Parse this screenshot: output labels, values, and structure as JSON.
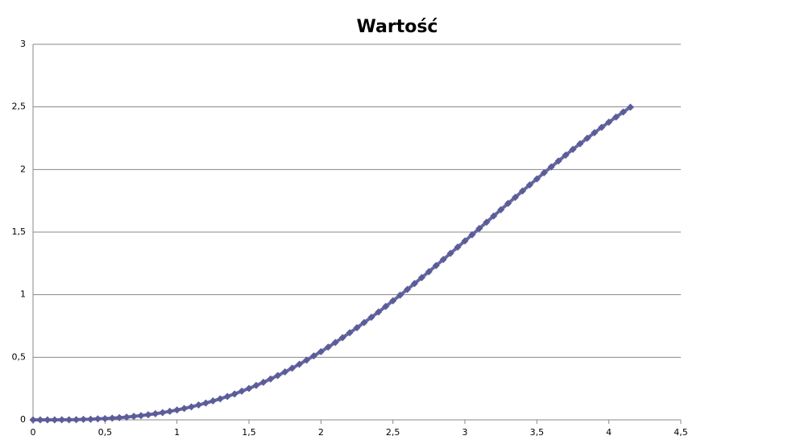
{
  "chart_data": {
    "type": "line",
    "title": "Wartość",
    "marker": "diamond",
    "grid": true,
    "xlim": [
      0,
      4.5
    ],
    "xticks": [
      0,
      {
        "value": 0.5,
        "label": "0,5"
      },
      1,
      {
        "value": 1.5,
        "label": "1,5"
      },
      2,
      {
        "value": 2.5,
        "label": "2,5"
      },
      3,
      {
        "value": 3.5,
        "label": "3,5"
      },
      4,
      {
        "value": 4.5,
        "label": "4,5"
      }
    ],
    "ylim": [
      0,
      3
    ],
    "yticks": [
      0,
      {
        "value": 0.5,
        "label": "0,5"
      },
      1,
      {
        "value": 1.5,
        "label": "1,5"
      },
      2,
      {
        "value": 2.5,
        "label": "2,5"
      },
      3
    ],
    "x": [
      0,
      0.05,
      0.1,
      0.15,
      0.2,
      0.25,
      0.3,
      0.35,
      0.4,
      0.45,
      0.5,
      0.55,
      0.6,
      0.65,
      0.7,
      0.75,
      0.8,
      0.85,
      0.9,
      0.95,
      1.0,
      1.05,
      1.1,
      1.15,
      1.2,
      1.25,
      1.3,
      1.35,
      1.4,
      1.45,
      1.5,
      1.55,
      1.6,
      1.65,
      1.7,
      1.75,
      1.8,
      1.85,
      1.9,
      1.95,
      2.0,
      2.05,
      2.1,
      2.15,
      2.2,
      2.25,
      2.3,
      2.35,
      2.4,
      2.45,
      2.5,
      2.55,
      2.6,
      2.65,
      2.7,
      2.75,
      2.8,
      2.85,
      2.9,
      2.95,
      3.0,
      3.05,
      3.1,
      3.15,
      3.2,
      3.25,
      3.3,
      3.35,
      3.4,
      3.45,
      3.5,
      3.55,
      3.6,
      3.65,
      3.7,
      3.75,
      3.8,
      3.85,
      3.9,
      3.95,
      4.0,
      4.05,
      4.1,
      4.15
    ],
    "series": [
      {
        "color": "#6666a3",
        "marker_color": "#5c5c99",
        "values": [
          0,
          0,
          0,
          0,
          0.001,
          0.001,
          0.002,
          0.004,
          0.005,
          0.008,
          0.01,
          0.014,
          0.018,
          0.022,
          0.028,
          0.034,
          0.041,
          0.049,
          0.058,
          0.068,
          0.079,
          0.091,
          0.104,
          0.119,
          0.134,
          0.151,
          0.168,
          0.187,
          0.207,
          0.229,
          0.251,
          0.275,
          0.3,
          0.327,
          0.354,
          0.383,
          0.413,
          0.444,
          0.477,
          0.511,
          0.545,
          0.581,
          0.618,
          0.657,
          0.696,
          0.736,
          0.777,
          0.819,
          0.862,
          0.906,
          0.951,
          0.996,
          1.042,
          1.089,
          1.136,
          1.184,
          1.233,
          1.281,
          1.33,
          1.38,
          1.429,
          1.479,
          1.529,
          1.579,
          1.629,
          1.679,
          1.729,
          1.778,
          1.828,
          1.877,
          1.925,
          1.974,
          2.021,
          2.068,
          2.115,
          2.161,
          2.206,
          2.25,
          2.294,
          2.337,
          2.378,
          2.419,
          2.459,
          2.498
        ]
      }
    ]
  }
}
